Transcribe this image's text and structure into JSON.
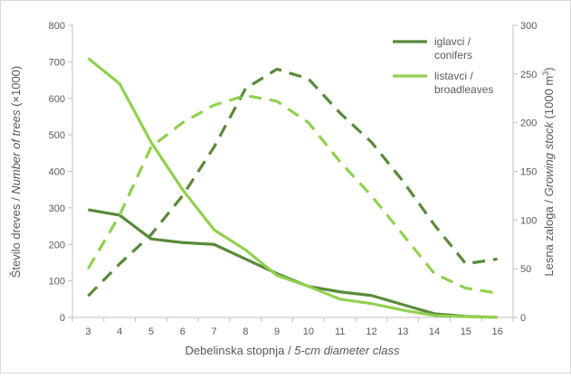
{
  "chart_data": {
    "type": "line",
    "x": [
      3,
      4,
      5,
      6,
      7,
      8,
      9,
      10,
      11,
      12,
      13,
      14,
      15,
      16
    ],
    "x_ticks": [
      "3",
      "4",
      "5",
      "6",
      "7",
      "8",
      "9",
      "10",
      "11",
      "12",
      "13",
      "14",
      "15",
      "16"
    ],
    "xlabel_plain": "Debelinska stopnja / ",
    "xlabel_italic": "5-cm diameter class",
    "ylabel_left_plain": "Število dreves / ",
    "ylabel_left_italic": "Number of trees",
    "ylabel_left_suffix": " (×1000)",
    "ylabel_right_plain": "Lesna zaloga / ",
    "ylabel_right_italic": "Growing stock",
    "ylabel_right_suffix_pre": " (1000 m",
    "ylabel_right_sup": "3",
    "ylabel_right_suffix_post": ")",
    "ylim_left": [
      0,
      800
    ],
    "yticks_left": [
      0,
      100,
      200,
      300,
      400,
      500,
      600,
      700,
      800
    ],
    "ylim_right": [
      0,
      300
    ],
    "yticks_right": [
      0,
      50,
      100,
      150,
      200,
      250,
      300
    ],
    "grid": false,
    "legend_position": "top-right",
    "colors": {
      "conifers": "#5a8a3a",
      "broadleaves": "#92d050",
      "axis": "#bfbfbf",
      "text": "#595959",
      "frame": "#d9d9d9"
    },
    "legend": [
      {
        "key": "conifers",
        "line1": "iglavci /",
        "line2": "conifers"
      },
      {
        "key": "broadleaves",
        "line1": "listavci /",
        "line2": "broadleaves"
      }
    ],
    "series": [
      {
        "key": "conifers",
        "measure": "trees",
        "axis": "left",
        "style": "solid",
        "values": [
          295,
          280,
          215,
          205,
          200,
          160,
          120,
          85,
          70,
          60,
          35,
          10,
          3,
          0
        ]
      },
      {
        "key": "broadleaves",
        "measure": "trees",
        "axis": "left",
        "style": "solid",
        "values": [
          710,
          640,
          480,
          350,
          240,
          185,
          115,
          85,
          50,
          38,
          20,
          5,
          2,
          0
        ]
      },
      {
        "key": "conifers",
        "measure": "growing_stock",
        "axis": "right",
        "style": "dashed",
        "values": [
          22,
          55,
          85,
          125,
          175,
          235,
          255,
          245,
          210,
          180,
          140,
          95,
          55,
          60
        ]
      },
      {
        "key": "broadleaves",
        "measure": "growing_stock",
        "axis": "right",
        "style": "dashed",
        "values": [
          50,
          105,
          175,
          200,
          218,
          228,
          222,
          200,
          160,
          125,
          85,
          45,
          30,
          25
        ]
      }
    ]
  }
}
